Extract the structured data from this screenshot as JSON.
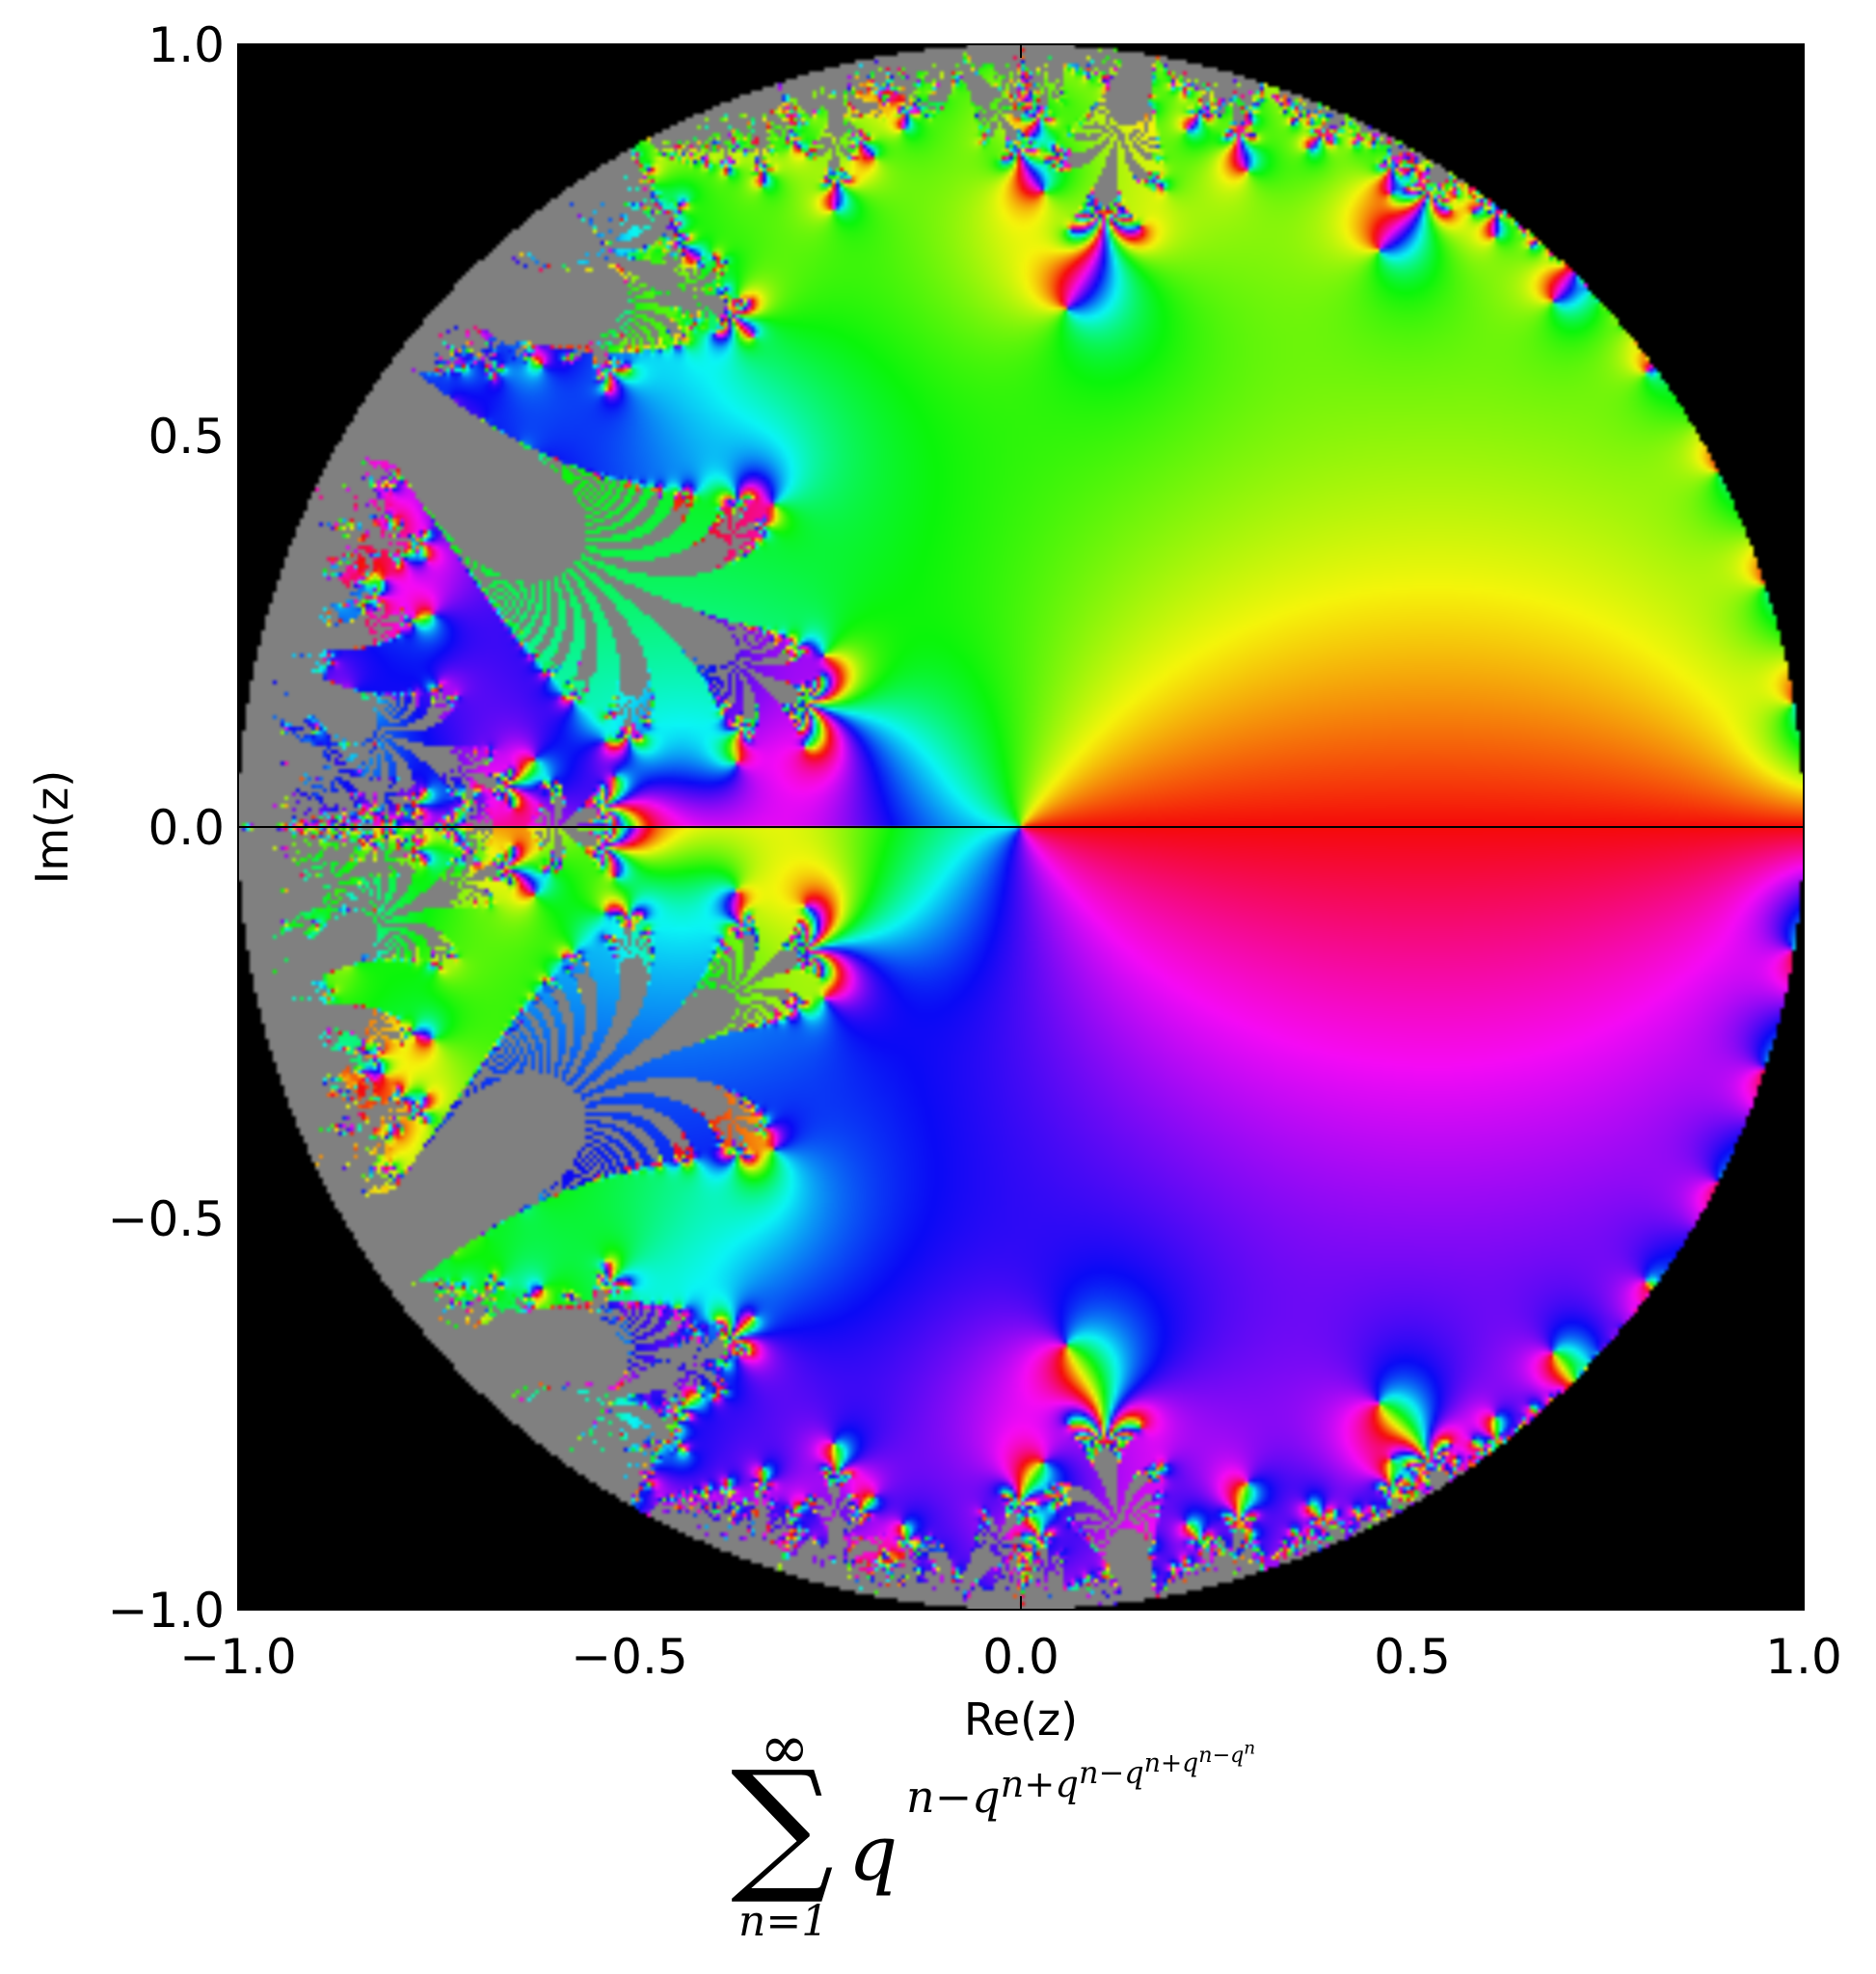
{
  "chart_data": {
    "type": "heatmap",
    "title": "",
    "xlabel": "Re(z)",
    "ylabel": "Im(z)",
    "xlim": [
      -1.0,
      1.0
    ],
    "ylim": [
      -1.0,
      1.0
    ],
    "x_ticks": [
      "−1.0",
      "−0.5",
      "0.0",
      "0.5",
      "1.0"
    ],
    "y_ticks": [
      "−1.0",
      "−0.5",
      "0.0",
      "0.5",
      "1.0"
    ],
    "x_tick_values": [
      -1.0,
      -0.5,
      0.0,
      0.5,
      1.0
    ],
    "y_tick_values": [
      -1.0,
      -0.5,
      0.0,
      0.5,
      1.0
    ],
    "domain": "unit disk |z| < 1",
    "coloring": "domain coloring by argument (hue)",
    "outside_color": "#000000",
    "divergent_color": "#808080",
    "grid": false,
    "formula": {
      "sum_upper": "∞",
      "sum_lower": "n=1",
      "base": "q",
      "exponent": "n−q^{n+q^{n−q^{n+q^{n−q^n}}}}"
    }
  }
}
